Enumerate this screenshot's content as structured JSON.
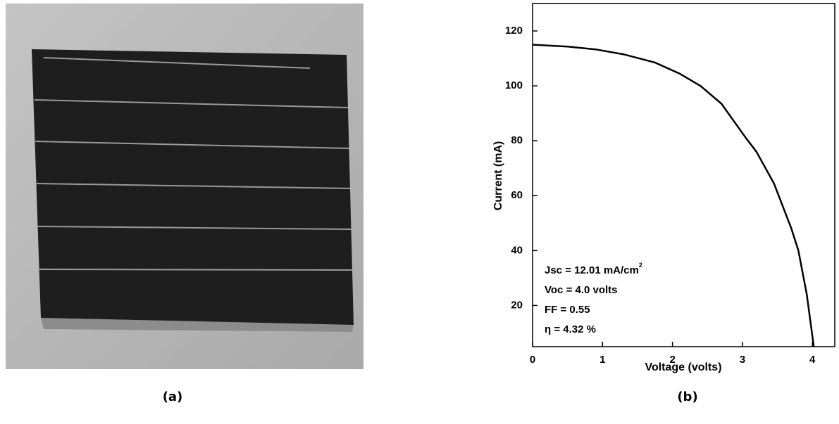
{
  "captions": [
    "(a)",
    "(b)"
  ],
  "chart_data": {
    "type": "line",
    "x_label": "Voltage (volts)",
    "y_label": "Current (mA)",
    "x": [
      0,
      0.5,
      0.9,
      1.3,
      1.75,
      2.1,
      2.4,
      2.7,
      3.05,
      3.2,
      3.45,
      3.7,
      3.8,
      3.92,
      4.02
    ],
    "values": [
      115,
      114.3,
      113.3,
      111.5,
      108.5,
      104.5,
      100,
      93.5,
      81,
      76,
      64.5,
      48,
      40,
      24,
      5
    ],
    "color": "#000000",
    "xlim": [
      0,
      4.32
    ],
    "xticks": [
      0,
      1,
      2,
      3,
      4
    ],
    "ylim": [
      5,
      130
    ],
    "yticks": [
      20,
      40,
      60,
      80,
      100,
      120
    ],
    "annotations": [
      {
        "text": "Jsc = 12.01 mA/cm",
        "sup": "2"
      },
      {
        "text": "Voc = 4.0 volts"
      },
      {
        "text": "FF = 0.55"
      },
      {
        "text": "η = 4.32 %"
      }
    ]
  }
}
